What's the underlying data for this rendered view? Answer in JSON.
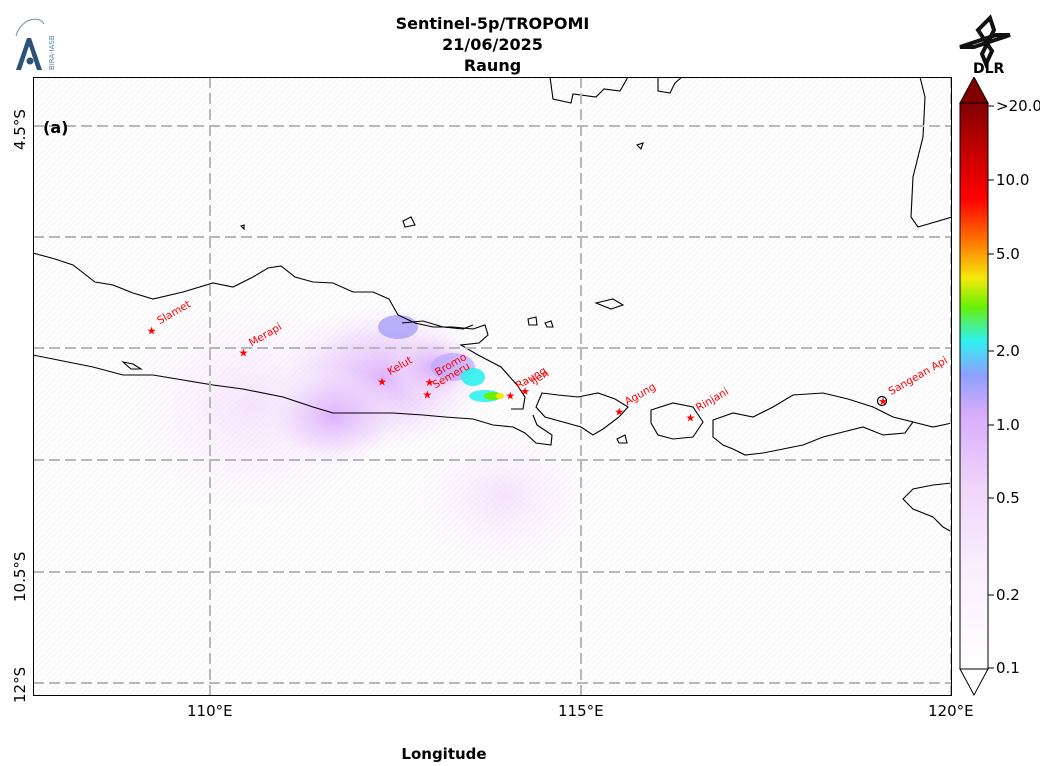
{
  "title": {
    "instrument": "Sentinel-5p/TROPOMI",
    "date": "21/06/2025",
    "volcano": "Raung"
  },
  "logos": {
    "left": "BIRA-IASB",
    "right": "DLR"
  },
  "panel_label": "(a)",
  "axes": {
    "xlabel": "Longitude",
    "xticks": [
      "110°E",
      "115°E",
      "120°E"
    ],
    "yticks": [
      "4.5°S",
      "10.5°S",
      "12°S"
    ],
    "lon_range": [
      107.6,
      120.0
    ],
    "lat_range": [
      -12.2,
      -3.8
    ]
  },
  "volcanoes": [
    {
      "name": "Slamet",
      "lon": 109.2,
      "lat": -7.24
    },
    {
      "name": "Merapi",
      "lon": 110.44,
      "lat": -7.54
    },
    {
      "name": "Kelut",
      "lon": 112.31,
      "lat": -7.93
    },
    {
      "name": "Semeru",
      "lon": 112.92,
      "lat": -8.11
    },
    {
      "name": "Bromo",
      "lon": 112.95,
      "lat": -7.94
    },
    {
      "name": "Raung",
      "lon": 114.04,
      "lat": -8.12
    },
    {
      "name": "Ijen",
      "lon": 114.24,
      "lat": -8.06
    },
    {
      "name": "Agung",
      "lon": 115.51,
      "lat": -8.34
    },
    {
      "name": "Rinjani",
      "lon": 116.47,
      "lat": -8.42
    },
    {
      "name": "Sangean Api",
      "lon": 119.07,
      "lat": -8.2
    }
  ],
  "colorbar": {
    "ticks": [
      ">20.0",
      "10.0",
      "5.0",
      "2.0",
      "1.0",
      "0.5",
      "0.2",
      "0.1"
    ],
    "colors": [
      "#ffffff",
      "#f3dcfb",
      "#d8a8fb",
      "#8da0ff",
      "#2ff1f0",
      "#68f007",
      "#f5e90a",
      "#ff8000",
      "#ff0000",
      "#c00000",
      "#800000"
    ]
  }
}
